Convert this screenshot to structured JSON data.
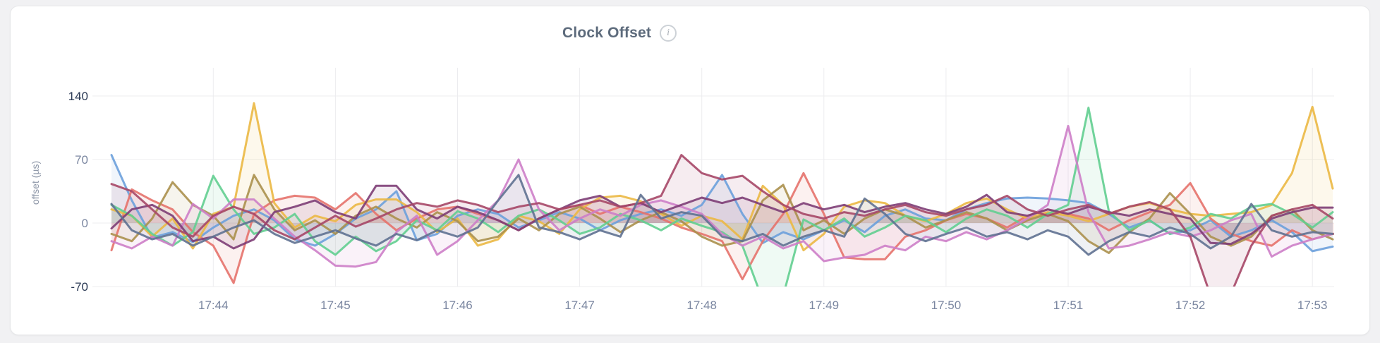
{
  "panel": {
    "title": "Clock Offset",
    "info_icon": {
      "name": "info-icon",
      "glyph": "i"
    }
  },
  "chart_data": {
    "type": "area",
    "title": "Clock Offset",
    "xlabel": "",
    "ylabel": "offset (µs)",
    "ylim": [
      -70,
      171
    ],
    "grid": true,
    "legend": "none",
    "fill_opacity": 0.1,
    "line_width": 3,
    "x_interval_seconds": 10,
    "y_ticks": [
      {
        "value": 140,
        "label": "140",
        "emphasis": "dark"
      },
      {
        "value": 70,
        "label": "70",
        "emphasis": "light"
      },
      {
        "value": 0,
        "label": "0",
        "emphasis": "light"
      },
      {
        "value": -70,
        "label": "-70",
        "emphasis": "dark"
      }
    ],
    "x_ticks": [
      {
        "index": 5,
        "label": "17:44"
      },
      {
        "index": 11,
        "label": "17:45"
      },
      {
        "index": 17,
        "label": "17:46"
      },
      {
        "index": 23,
        "label": "17:47"
      },
      {
        "index": 29,
        "label": "17:48"
      },
      {
        "index": 35,
        "label": "17:49"
      },
      {
        "index": 41,
        "label": "17:50"
      },
      {
        "index": 47,
        "label": "17:51"
      },
      {
        "index": 53,
        "label": "17:52"
      },
      {
        "index": 59,
        "label": "17:53"
      }
    ],
    "series": [
      {
        "name": "blue",
        "color": "#6BA0DB",
        "values": [
          75,
          25,
          -16,
          -10,
          -21,
          -5,
          8,
          15,
          3,
          -18,
          -25,
          -12,
          5,
          15,
          35,
          -19,
          -12,
          8,
          15,
          10,
          -5,
          3,
          12,
          5,
          -8,
          3,
          10,
          15,
          8,
          20,
          53,
          10,
          -22,
          -10,
          -18,
          -8,
          3,
          -10,
          8,
          15,
          5,
          3,
          15,
          22,
          27,
          28,
          27,
          25,
          22,
          10,
          -5,
          3,
          -12,
          -8,
          3,
          -15,
          -8,
          3,
          -10,
          -31,
          -26
        ]
      },
      {
        "name": "red",
        "color": "#E5726C",
        "values": [
          -30,
          37,
          25,
          15,
          -10,
          -25,
          -66,
          10,
          25,
          30,
          28,
          15,
          33,
          10,
          -8,
          5,
          15,
          18,
          10,
          3,
          -8,
          5,
          15,
          20,
          10,
          18,
          12,
          5,
          -5,
          -12,
          -20,
          -62,
          -20,
          10,
          55,
          10,
          -38,
          -40,
          -40,
          -15,
          -8,
          3,
          10,
          5,
          -5,
          8,
          15,
          10,
          5,
          -8,
          3,
          12,
          20,
          44,
          5,
          -12,
          -20,
          -25,
          -8,
          -18,
          -12,
          -12
        ]
      },
      {
        "name": "gold",
        "color": "#EBB844",
        "values": [
          15,
          8,
          -15,
          5,
          -28,
          10,
          18,
          132,
          22,
          -5,
          8,
          2,
          20,
          26,
          26,
          12,
          -10,
          5,
          -25,
          -18,
          8,
          2,
          -12,
          15,
          28,
          30,
          24,
          10,
          -3,
          8,
          2,
          -18,
          41,
          20,
          -30,
          -12,
          18,
          25,
          22,
          8,
          2,
          10,
          22,
          27,
          15,
          5,
          12,
          8,
          2,
          10,
          18,
          22,
          15,
          10,
          8,
          10,
          12,
          20,
          55,
          128,
          38
        ]
      },
      {
        "name": "olive",
        "color": "#AB904C",
        "values": [
          -12,
          -20,
          5,
          45,
          20,
          8,
          -18,
          53,
          15,
          -8,
          3,
          -12,
          8,
          18,
          5,
          -5,
          12,
          2,
          -20,
          -15,
          5,
          -8,
          10,
          18,
          5,
          -10,
          3,
          12,
          2,
          -15,
          -25,
          -20,
          25,
          42,
          -8,
          3,
          -12,
          5,
          15,
          8,
          -5,
          3,
          12,
          5,
          -8,
          3,
          10,
          2,
          -20,
          -33,
          -10,
          5,
          33,
          10,
          -15,
          -25,
          -15,
          8,
          15,
          -8,
          -18
        ]
      },
      {
        "name": "green",
        "color": "#62CE90",
        "values": [
          20,
          8,
          -12,
          -25,
          -10,
          52,
          15,
          -12,
          -5,
          10,
          -20,
          -35,
          -15,
          -31,
          -20,
          3,
          -8,
          13,
          5,
          -10,
          8,
          15,
          3,
          -12,
          -5,
          10,
          3,
          -8,
          5,
          -3,
          -10,
          -25,
          -85,
          -80,
          4,
          -8,
          5,
          -15,
          -5,
          8,
          3,
          -10,
          5,
          15,
          8,
          -5,
          10,
          20,
          127,
          13,
          -8,
          3,
          -12,
          -5,
          10,
          5,
          18,
          21,
          10,
          -5,
          12
        ]
      },
      {
        "name": "orchid",
        "color": "#CD7EC8",
        "values": [
          -20,
          -28,
          -15,
          -25,
          21,
          5,
          26,
          26,
          5,
          -15,
          -30,
          -47,
          -48,
          -43,
          -10,
          8,
          -35,
          -20,
          3,
          25,
          70,
          15,
          -8,
          5,
          15,
          8,
          20,
          25,
          18,
          10,
          -12,
          -25,
          -15,
          -28,
          -20,
          -42,
          -38,
          -35,
          -25,
          -30,
          -15,
          -20,
          -10,
          -18,
          -8,
          5,
          20,
          107,
          12,
          -28,
          -25,
          -18,
          -10,
          -15,
          -8,
          3,
          10,
          -37,
          -25,
          -18,
          -12
        ]
      },
      {
        "name": "plum",
        "color": "#7D3D76",
        "values": [
          -6,
          15,
          20,
          8,
          -20,
          -15,
          -28,
          -18,
          12,
          18,
          25,
          12,
          5,
          41,
          41,
          15,
          5,
          18,
          12,
          3,
          -8,
          5,
          15,
          25,
          30,
          18,
          22,
          12,
          20,
          28,
          22,
          28,
          20,
          12,
          22,
          15,
          20,
          12,
          18,
          22,
          15,
          10,
          18,
          31,
          12,
          8,
          15,
          10,
          18,
          12,
          8,
          15,
          10,
          5,
          -22,
          -23,
          -12,
          5,
          12,
          17,
          17
        ]
      },
      {
        "name": "maroon",
        "color": "#A64767",
        "values": [
          43,
          35,
          15,
          -5,
          -15,
          8,
          18,
          10,
          -8,
          -18,
          -5,
          8,
          -4,
          5,
          15,
          22,
          18,
          25,
          20,
          12,
          18,
          22,
          15,
          20,
          25,
          18,
          22,
          30,
          75,
          55,
          48,
          52,
          35,
          20,
          10,
          5,
          12,
          8,
          15,
          20,
          12,
          8,
          15,
          20,
          30,
          15,
          8,
          15,
          20,
          10,
          18,
          23,
          15,
          -15,
          -80,
          -78,
          -25,
          8,
          15,
          20,
          5
        ]
      },
      {
        "name": "slate",
        "color": "#5F7191",
        "values": [
          21,
          -8,
          -18,
          -12,
          -25,
          -15,
          -5,
          3,
          -12,
          -22,
          -15,
          -8,
          -17,
          -25,
          -12,
          -19,
          -8,
          -15,
          -5,
          25,
          53,
          -5,
          -10,
          -18,
          -8,
          -15,
          31,
          5,
          12,
          8,
          -15,
          -20,
          -12,
          -25,
          -15,
          -8,
          -15,
          27,
          10,
          -12,
          -20,
          -12,
          -5,
          -15,
          -10,
          -18,
          -8,
          -15,
          -35,
          -20,
          -10,
          -15,
          -5,
          -12,
          -28,
          -15,
          21,
          -8,
          -15,
          -10,
          -12
        ]
      }
    ]
  }
}
